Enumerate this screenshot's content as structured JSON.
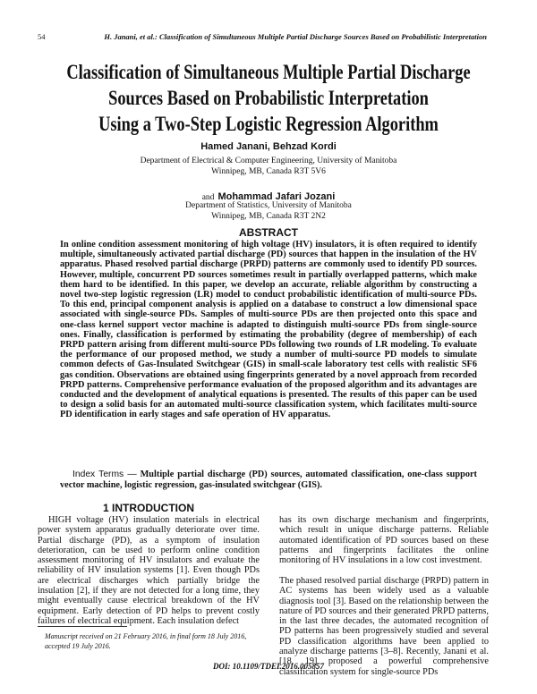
{
  "header": {
    "page_number": "54",
    "running_title": "H. Janani, et al.: Classification of Simultaneous Multiple Partial Discharge Sources Based on Probabilistic Interpretation"
  },
  "title_lines": [
    "Classification of Simultaneous Multiple Partial Discharge",
    "Sources Based on Probabilistic Interpretation",
    "Using a Two-Step Logistic Regression Algorithm"
  ],
  "authors": [
    {
      "names": "Hamed Janani, Behzad Kordi",
      "affiliation": "Department of Electrical & Computer Engineering, University of Manitoba",
      "address": "Winnipeg, MB, Canada R3T 5V6"
    },
    {
      "prefix": "and",
      "names": "Mohammad Jafari Jozani",
      "affiliation": "Department of Statistics, University of Manitoba",
      "address": "Winnipeg, MB, Canada R3T 2N2"
    }
  ],
  "abstract": {
    "heading": "ABSTRACT",
    "text": "In online condition assessment monitoring of high voltage (HV) insulators, it is often required to identify multiple, simultaneously activated partial discharge (PD) sources that happen in the insulation of the HV apparatus. Phased resolved partial discharge (PRPD) patterns are commonly used to identify PD sources. However, multiple, concurrent PD sources sometimes result in partially overlapped patterns, which make them hard to be identified. In this paper, we develop an accurate, reliable algorithm by constructing a novel two-step logistic regression (LR) model to conduct probabilistic identification of multi-source PDs. To this end, principal component analysis is applied on a database to construct a low dimensional space associated with single-source PDs. Samples of multi-source PDs are then projected onto this space and one-class kernel support vector machine is adapted to distinguish multi-source PDs from single-source ones. Finally, classification is performed by estimating the probability (degree of membership) of each PRPD pattern arising from different multi-source PDs following two rounds of LR modeling. To evaluate the performance of our proposed method, we study a number of multi-source PD models to simulate common defects of Gas-Insulated Switchgear (GIS) in small-scale laboratory test cells with realistic SF6 gas condition. Observations are obtained using fingerprints generated by a novel approach from recorded PRPD patterns. Comprehensive performance evaluation of the proposed algorithm and its advantages are conducted and the development of analytical equations is presented. The results of this paper can be used to design a solid basis for an automated multi-source classification system, which facilitates multi-source PD identification in early stages and safe operation of HV apparatus."
  },
  "index_terms": {
    "label": "Index Terms —",
    "text": "Multiple partial discharge (PD) sources, automated classification, one-class support vector machine, logistic regression, gas-insulated switchgear (GIS)."
  },
  "introduction": {
    "heading": "1   INTRODUCTION",
    "col1": "HIGH voltage (HV) insulation materials in electrical power system apparatus gradually deteriorate over time. Partial discharge (PD), as a symptom of insulation deterioration, can be used to perform online condition assessment monitoring of HV insulators and evaluate the reliability of HV insulation systems [1]. Even though PDs are electrical discharges which partially bridge the insulation [2], if they are not detected for a long time, they might eventually cause electrical breakdown of the HV equipment. Early detection of PD helps to prevent costly failures of electrical equipment. Each insulation defect",
    "col2_p1": "has its own discharge mechanism and fingerprints, which result in unique discharge patterns. Reliable automated identification of PD sources based on these patterns and fingerprints facilitates the online monitoring of HV insulations in a low cost investment.",
    "col2_p2": "The phased resolved partial discharge (PRPD) pattern in AC systems has been widely used as a valuable diagnosis tool [3]. Based on the relationship between the nature of PD sources and their generated PRPD patterns, in the last three decades, the automated recognition of PD patterns has been progressively studied and several PD classification algorithms have been applied to analyze discharge patterns [3–8]. Recently, Janani et al. [18, 19] proposed a powerful comprehensive classification system for single-source PDs"
  },
  "footnote": "Manuscript received on 21 February 2016, in final form 18 July 2016, accepted 19 July 2016.",
  "doi": "DOI: 10.1109/TDEI.2016.005857"
}
